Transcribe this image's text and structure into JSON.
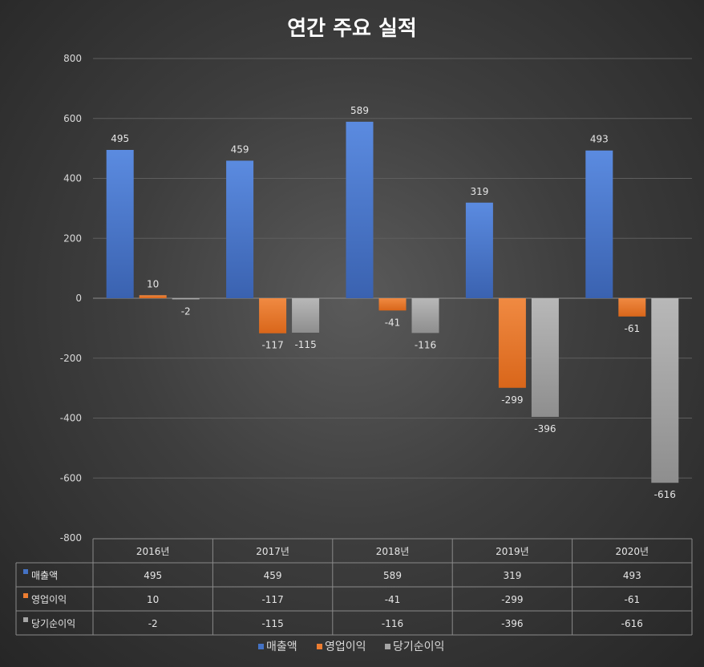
{
  "chart_data": {
    "type": "bar",
    "title": "연간 주요 실적",
    "categories": [
      "2016년",
      "2017년",
      "2018년",
      "2019년",
      "2020년"
    ],
    "series": [
      {
        "name": "매출액",
        "color": "#4472c4",
        "values": [
          495,
          459,
          589,
          319,
          493
        ]
      },
      {
        "name": "영업이익",
        "color": "#ed7d31",
        "values": [
          10,
          -117,
          -41,
          -299,
          -61
        ]
      },
      {
        "name": "당기순이익",
        "color": "#a5a5a5",
        "values": [
          -2,
          -115,
          -116,
          -396,
          -616
        ]
      }
    ],
    "ylim": [
      -800,
      800
    ],
    "yticks": [
      800,
      600,
      400,
      200,
      0,
      -200,
      -400,
      -600,
      -800
    ],
    "grid": true,
    "data_table": true,
    "legend": "bottom"
  }
}
